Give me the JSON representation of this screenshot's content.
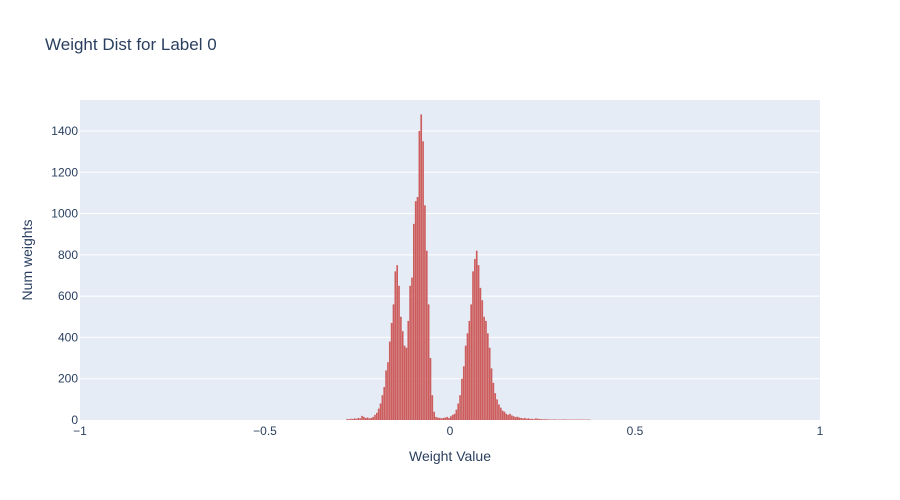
{
  "chart_data": {
    "type": "bar",
    "title": "Weight Dist for Label 0",
    "xlabel": "Weight Value",
    "ylabel": "Num weights",
    "xlim": [
      -1,
      1
    ],
    "ylim": [
      0,
      1550
    ],
    "x_ticks": [
      -1,
      -0.5,
      0,
      0.5,
      1
    ],
    "x_tick_labels": [
      "−1",
      "−0.5",
      "0",
      "0.5",
      "1"
    ],
    "y_ticks": [
      0,
      200,
      400,
      600,
      800,
      1000,
      1200,
      1400
    ],
    "y_tick_labels": [
      "0",
      "200",
      "400",
      "600",
      "800",
      "1000",
      "1200",
      "1400"
    ],
    "grid": true,
    "bar_color": "#cd5c5c",
    "plot_bg": "#e5ecf6",
    "bin_width": 0.005,
    "bins_x": [
      -0.28,
      -0.275,
      -0.27,
      -0.265,
      -0.26,
      -0.255,
      -0.25,
      -0.245,
      -0.24,
      -0.235,
      -0.23,
      -0.225,
      -0.22,
      -0.215,
      -0.21,
      -0.205,
      -0.2,
      -0.195,
      -0.19,
      -0.185,
      -0.18,
      -0.175,
      -0.17,
      -0.165,
      -0.16,
      -0.155,
      -0.15,
      -0.145,
      -0.14,
      -0.135,
      -0.13,
      -0.125,
      -0.12,
      -0.115,
      -0.11,
      -0.105,
      -0.1,
      -0.095,
      -0.09,
      -0.085,
      -0.08,
      -0.075,
      -0.07,
      -0.065,
      -0.06,
      -0.055,
      -0.05,
      -0.045,
      -0.04,
      -0.035,
      -0.03,
      -0.025,
      -0.02,
      -0.015,
      -0.01,
      -0.005,
      0,
      0.005,
      0.01,
      0.015,
      0.02,
      0.025,
      0.03,
      0.035,
      0.04,
      0.045,
      0.05,
      0.055,
      0.06,
      0.065,
      0.07,
      0.075,
      0.08,
      0.085,
      0.09,
      0.095,
      0.1,
      0.105,
      0.11,
      0.115,
      0.12,
      0.125,
      0.13,
      0.135,
      0.14,
      0.145,
      0.15,
      0.155,
      0.16,
      0.165,
      0.17,
      0.175,
      0.18,
      0.185,
      0.19,
      0.195,
      0.2,
      0.205,
      0.21,
      0.215,
      0.22,
      0.225,
      0.23,
      0.235,
      0.24,
      0.245,
      0.25,
      0.255,
      0.26,
      0.265,
      0.27,
      0.275,
      0.28,
      0.285,
      0.29,
      0.295,
      0.3,
      0.305,
      0.31,
      0.315,
      0.32,
      0.325,
      0.33,
      0.335,
      0.34,
      0.345,
      0.35,
      0.355,
      0.36,
      0.365,
      0.37,
      0.375
    ],
    "bins_count": [
      5,
      4,
      6,
      5,
      8,
      6,
      10,
      8,
      20,
      15,
      10,
      12,
      8,
      10,
      15,
      25,
      35,
      55,
      80,
      120,
      160,
      240,
      280,
      380,
      470,
      560,
      720,
      750,
      650,
      500,
      430,
      360,
      350,
      480,
      650,
      690,
      950,
      1060,
      1080,
      1400,
      1480,
      1350,
      1040,
      820,
      560,
      300,
      120,
      40,
      15,
      12,
      10,
      8,
      10,
      12,
      15,
      10,
      18,
      25,
      30,
      50,
      80,
      120,
      200,
      260,
      360,
      420,
      480,
      560,
      720,
      780,
      820,
      750,
      640,
      580,
      500,
      480,
      420,
      350,
      250,
      180,
      130,
      100,
      75,
      60,
      45,
      40,
      30,
      25,
      30,
      22,
      18,
      14,
      16,
      12,
      10,
      8,
      10,
      6,
      8,
      5,
      6,
      4,
      8,
      6,
      5,
      4,
      3,
      4,
      3,
      3,
      2,
      2,
      3,
      2,
      2,
      2,
      2,
      3,
      2,
      2,
      2,
      2,
      2,
      2,
      2,
      2,
      2,
      2,
      2,
      2,
      2,
      2
    ]
  }
}
